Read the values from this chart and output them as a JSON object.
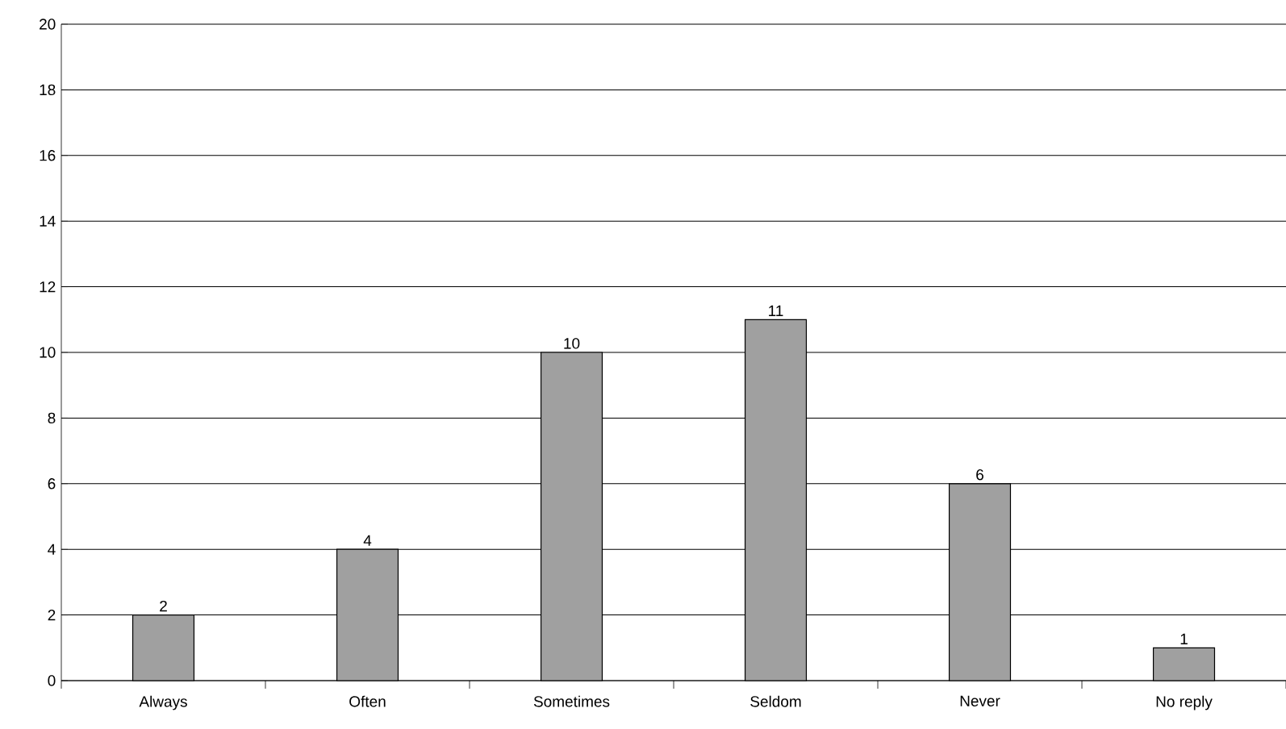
{
  "chart_data": {
    "type": "bar",
    "categories": [
      "Always",
      "Often",
      "Sometimes",
      "Seldom",
      "Never",
      "No reply"
    ],
    "values": [
      2,
      4,
      10,
      11,
      6,
      1
    ],
    "color": "#a0a0a0",
    "ylim": [
      0,
      20
    ],
    "yticks": [
      0,
      2,
      4,
      6,
      8,
      10,
      12,
      14,
      16,
      18,
      20
    ],
    "grid": "y",
    "data_labels": true
  }
}
